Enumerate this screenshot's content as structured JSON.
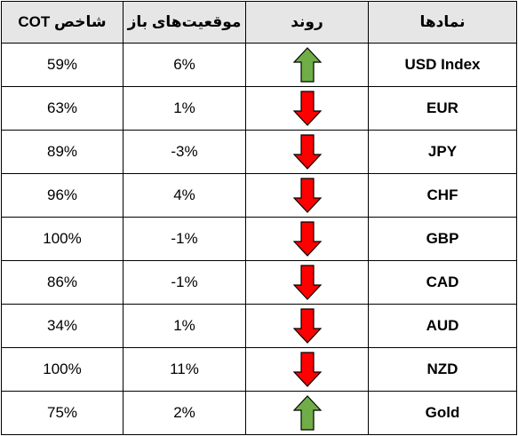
{
  "table": {
    "headers": {
      "cot_index": "شاخص COT",
      "open_positions": "موقعیت‌های باز",
      "trend": "روند",
      "symbols": "نمادها"
    },
    "rows": [
      {
        "symbol": "USD Index",
        "trend": "up",
        "open_positions": "6%",
        "cot_index": "59%"
      },
      {
        "symbol": "EUR",
        "trend": "down",
        "open_positions": "1%",
        "cot_index": "63%"
      },
      {
        "symbol": "JPY",
        "trend": "down",
        "open_positions": "-3%",
        "cot_index": "89%"
      },
      {
        "symbol": "CHF",
        "trend": "down",
        "open_positions": "4%",
        "cot_index": "96%"
      },
      {
        "symbol": "GBP",
        "trend": "down",
        "open_positions": "-1%",
        "cot_index": "100%"
      },
      {
        "symbol": "CAD",
        "trend": "down",
        "open_positions": "-1%",
        "cot_index": "86%"
      },
      {
        "symbol": "AUD",
        "trend": "down",
        "open_positions": "1%",
        "cot_index": "34%"
      },
      {
        "symbol": "NZD",
        "trend": "down",
        "open_positions": "11%",
        "cot_index": "100%"
      },
      {
        "symbol": "Gold",
        "trend": "up",
        "open_positions": "2%",
        "cot_index": "75%"
      }
    ],
    "colors": {
      "header_background": "#e7e6e6",
      "up_arrow": "#70ad47",
      "down_arrow": "#ff0000",
      "arrow_outline": "#000000"
    },
    "icons": {
      "up": "up-arrow-icon",
      "down": "down-arrow-icon"
    }
  }
}
